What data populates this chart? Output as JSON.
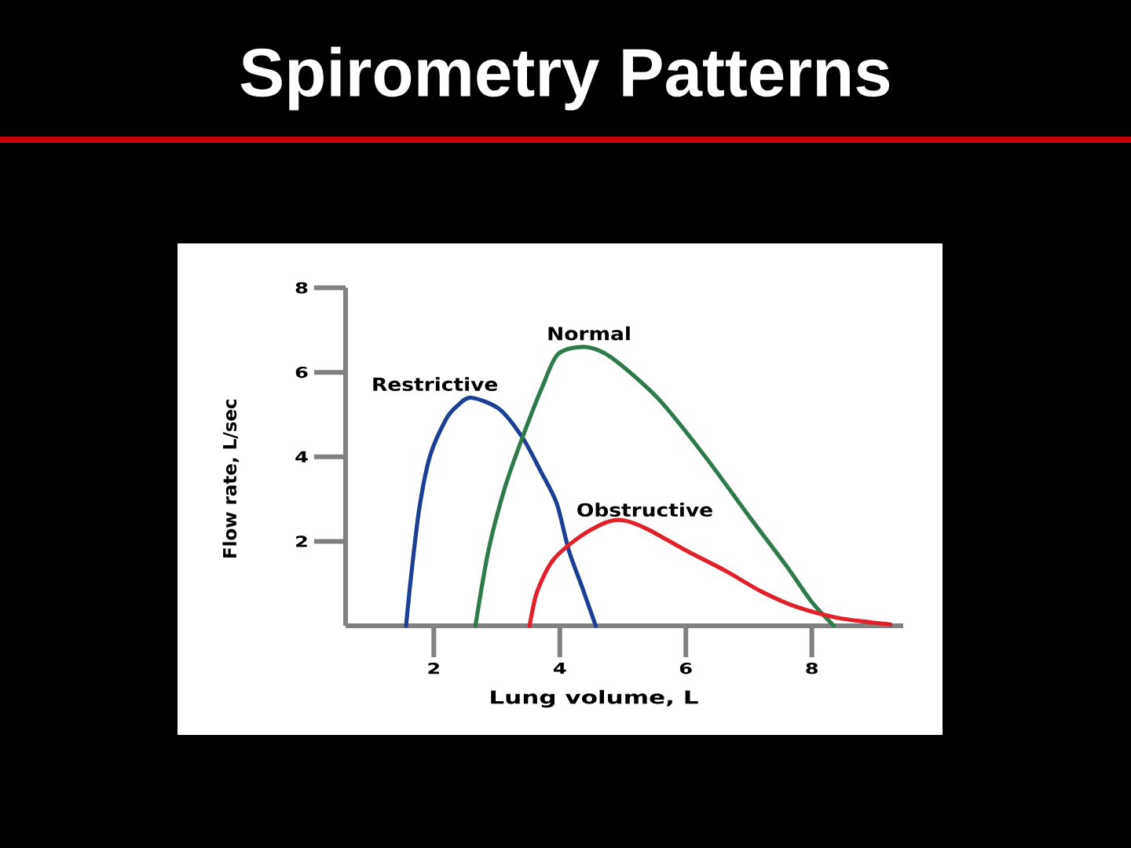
{
  "chart_data": {
    "type": "line",
    "title": "Spirometry Patterns",
    "xlabel": "Lung volume, L",
    "ylabel": "Flow rate, L/sec",
    "xlim": [
      0.6,
      9.45
    ],
    "ylim": [
      0,
      8
    ],
    "xticks": [
      2,
      4,
      6,
      8
    ],
    "yticks": [
      2,
      4,
      6,
      8
    ],
    "line_style": "solid",
    "series": [
      {
        "name": "Restrictive",
        "color": "#1c3f94",
        "x": [
          1.56,
          1.64,
          1.77,
          1.94,
          2.19,
          2.36,
          2.59,
          3.04,
          3.41,
          3.7,
          3.95,
          4.14,
          4.35,
          4.57
        ],
        "values": [
          0,
          1.18,
          2.78,
          4.02,
          4.88,
          5.19,
          5.4,
          5.13,
          4.45,
          3.65,
          2.9,
          1.8,
          0.93,
          0
        ]
      },
      {
        "name": "Normal",
        "color": "#2f7a4a",
        "x": [
          2.66,
          2.87,
          3.13,
          3.42,
          3.72,
          3.97,
          4.39,
          4.81,
          5.56,
          6.3,
          7.03,
          7.59,
          8.0,
          8.35
        ],
        "values": [
          0,
          1.8,
          3.28,
          4.51,
          5.65,
          6.43,
          6.6,
          6.36,
          5.38,
          4.02,
          2.54,
          1.43,
          0.56,
          0
        ]
      },
      {
        "name": "Obstructive",
        "color": "#e0202a",
        "x": [
          3.52,
          3.64,
          3.89,
          4.31,
          4.72,
          5.0,
          5.39,
          5.98,
          6.63,
          7.2,
          7.77,
          8.4,
          8.89,
          9.25
        ],
        "values": [
          0,
          0.81,
          1.55,
          2.1,
          2.44,
          2.5,
          2.29,
          1.8,
          1.3,
          0.81,
          0.44,
          0.19,
          0.09,
          0.03
        ]
      }
    ]
  }
}
